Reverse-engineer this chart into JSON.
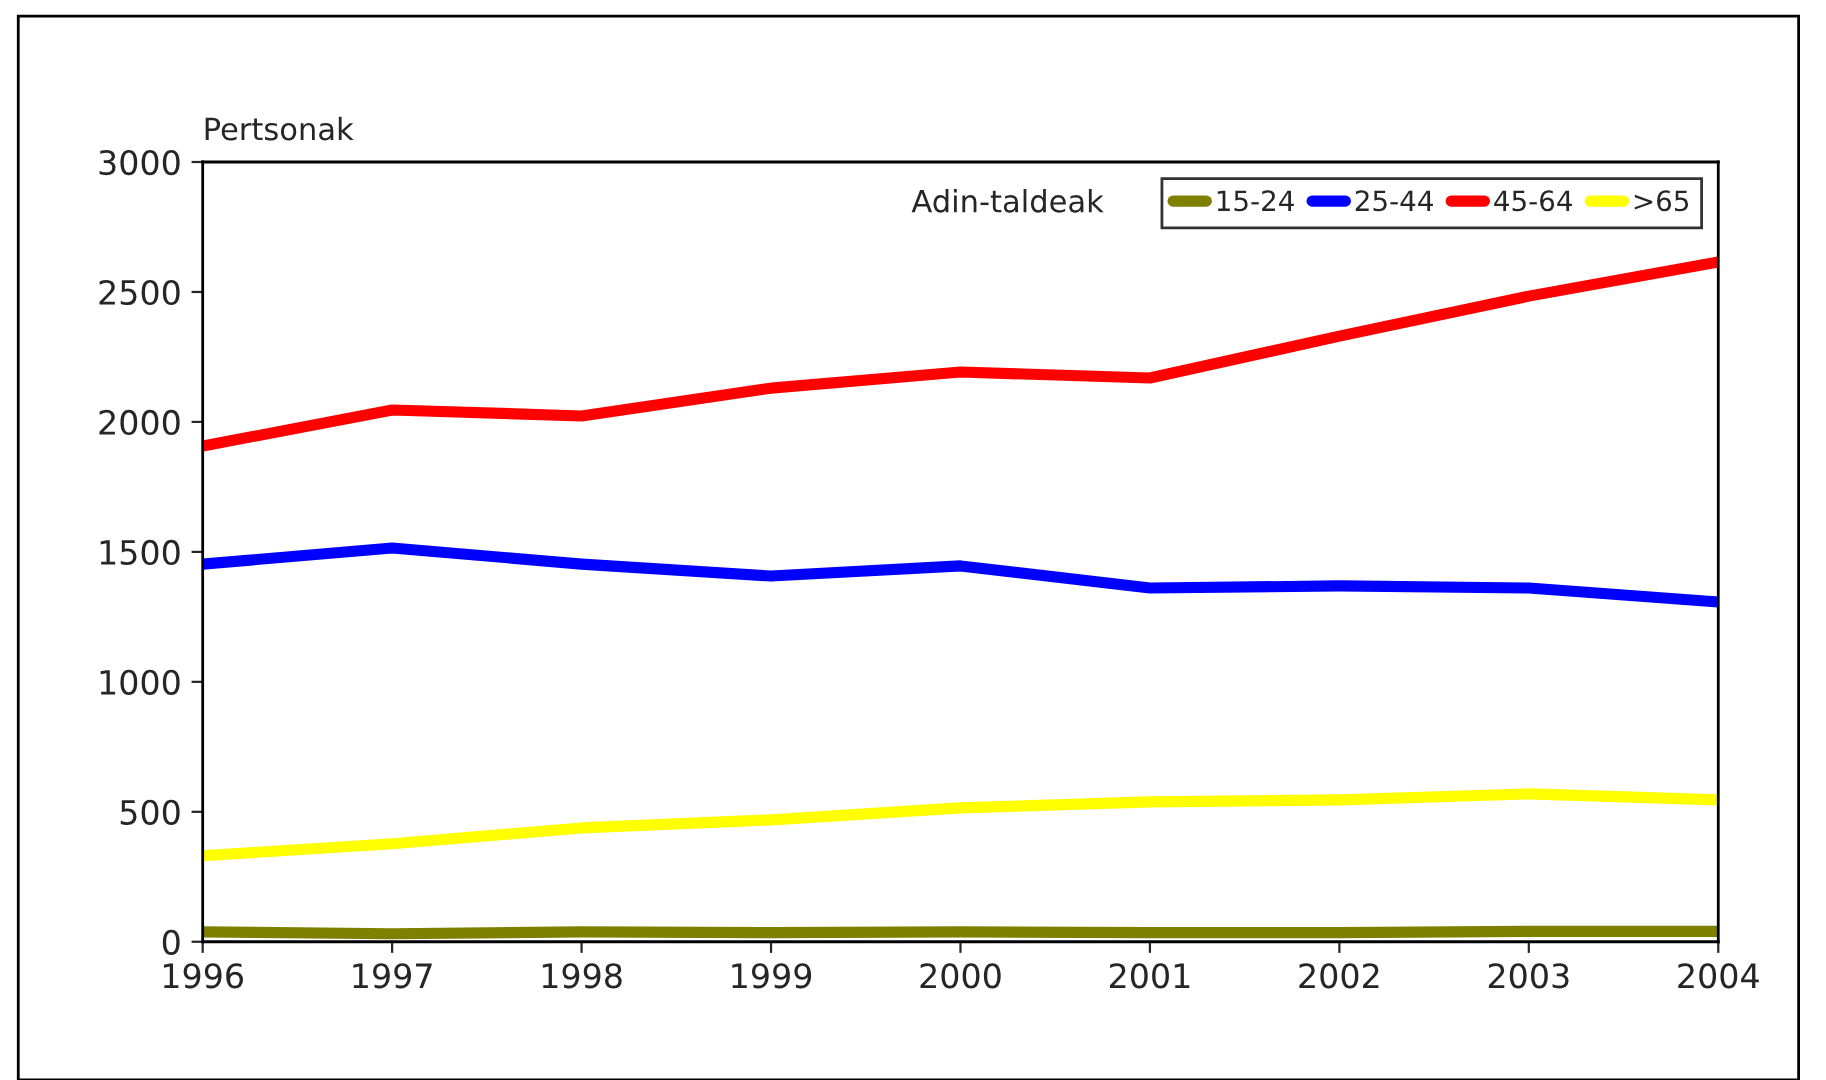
{
  "chart_data": {
    "type": "line",
    "ylabel": "Pertsonak",
    "legend_title": "Adin-taldeak",
    "x": [
      1996,
      1997,
      1998,
      1999,
      2000,
      2001,
      2002,
      2003,
      2004
    ],
    "xlim": [
      1996,
      2004
    ],
    "xticks": [
      1996,
      1997,
      1998,
      1999,
      2000,
      2001,
      2002,
      2003,
      2004
    ],
    "ylim": [
      0,
      3000
    ],
    "yticks": [
      0,
      500,
      1000,
      1500,
      2000,
      2500,
      3000
    ],
    "grid": false,
    "legend": "top right",
    "series": [
      {
        "name": "15-24",
        "color": "#808000",
        "values": [
          38,
          31,
          38,
          35,
          38,
          35,
          35,
          40,
          40
        ]
      },
      {
        "name": "25-44",
        "color": "#0000ff",
        "values": [
          1453,
          1515,
          1453,
          1407,
          1446,
          1361,
          1369,
          1361,
          1307
        ]
      },
      {
        "name": "45-64",
        "color": "#ff0000",
        "values": [
          1907,
          2046,
          2023,
          2130,
          2192,
          2169,
          2330,
          2484,
          2615
        ]
      },
      {
        "name": ">65",
        "color": "#ffff00",
        "values": [
          331,
          377,
          438,
          469,
          515,
          538,
          546,
          569,
          546
        ]
      }
    ]
  }
}
